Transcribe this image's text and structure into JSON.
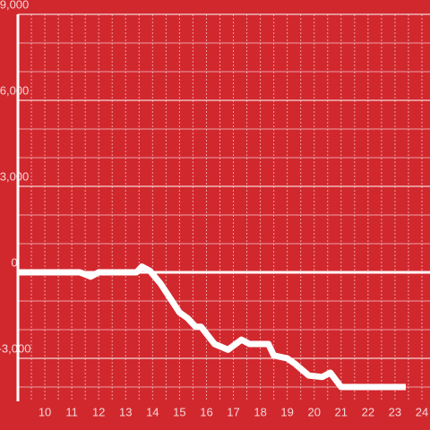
{
  "chart_data": {
    "type": "line",
    "background": "#d1282e",
    "grid": true,
    "x": [
      9,
      11.3,
      11.7,
      12,
      13.4,
      13.6,
      13.9,
      14.3,
      15,
      15.3,
      15.6,
      15.8,
      16.3,
      16.8,
      17.3,
      17.6,
      18.3,
      18.5,
      19,
      19.3,
      19.8,
      20.3,
      20.6,
      21,
      21.3,
      23.4
    ],
    "series": [
      {
        "color": "#ffffff",
        "values": [
          0,
          0,
          -150,
          0,
          0,
          200,
          50,
          -400,
          -1400,
          -1600,
          -1900,
          -1900,
          -2500,
          -2700,
          -2350,
          -2500,
          -2500,
          -2900,
          -3000,
          -3200,
          -3600,
          -3650,
          -3500,
          -4000,
          -4000,
          -4000
        ]
      }
    ],
    "xlim": [
      9,
      24.3
    ],
    "xticks": [
      10,
      11,
      12,
      13,
      14,
      15,
      16,
      17,
      18,
      19,
      20,
      21,
      22,
      23,
      24
    ],
    "xminorticks": [
      9.5,
      10.5,
      11.5,
      12.5,
      13.5,
      14.5,
      15.5,
      16.5,
      17.5,
      18.5,
      19.5,
      20.5,
      21.5,
      22.5,
      23.5
    ],
    "ylim": [
      -4500,
      9000
    ],
    "yticks": [
      {
        "value": -3000,
        "label": "-3,000"
      },
      0,
      {
        "value": 3000,
        "label": "3,000"
      },
      {
        "value": 6000,
        "label": "6,000"
      },
      {
        "value": 9000,
        "label": "9,000"
      }
    ],
    "yminorticks": [
      -4000,
      -2000,
      -1000,
      1000,
      2000,
      4000,
      5000,
      7000,
      8000
    ]
  }
}
